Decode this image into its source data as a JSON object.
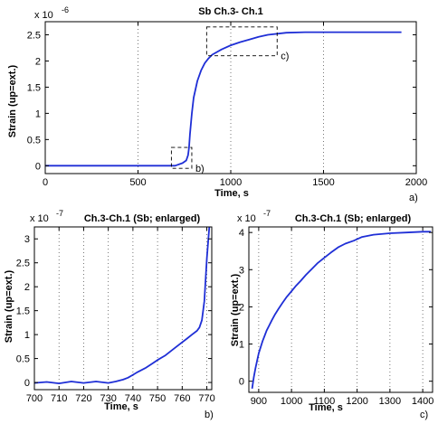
{
  "colors": {
    "series": "#1f2fd6",
    "grid": "#555555",
    "axis": "#000000"
  },
  "chart_data": [
    {
      "type": "line",
      "title": "Sb  Ch.3- Ch.1",
      "xlabel": "Time, s",
      "ylabel": "Strain (up=ext.)",
      "exponent_label": "x 10",
      "exponent_value": "-6",
      "panel_label": "a)",
      "xlim": [
        0,
        2000
      ],
      "ylim": [
        -0.15,
        2.75
      ],
      "xticks": [
        0,
        500,
        1000,
        1500,
        2000
      ],
      "yticks": [
        0,
        0.5,
        1,
        1.5,
        2,
        2.5
      ],
      "xtick_labels": [
        "0",
        "500",
        "1000",
        "1500",
        "2000"
      ],
      "ytick_labels": [
        "0",
        "0.5",
        "1",
        "1.5",
        "2",
        "2.5"
      ],
      "grid": "vertical dotted",
      "scale": "1e-6",
      "x": [
        0,
        200,
        400,
        600,
        700,
        740,
        760,
        770,
        775,
        780,
        790,
        800,
        820,
        840,
        860,
        880,
        900,
        950,
        1000,
        1050,
        1100,
        1150,
        1200,
        1300,
        1400,
        1500,
        1600,
        1700,
        1800,
        1920
      ],
      "y": [
        0.0,
        0.0,
        0.0,
        0.0,
        0.0,
        0.05,
        0.1,
        0.2,
        0.35,
        0.6,
        1.0,
        1.3,
        1.62,
        1.82,
        1.96,
        2.05,
        2.12,
        2.22,
        2.3,
        2.36,
        2.41,
        2.46,
        2.5,
        2.54,
        2.55,
        2.55,
        2.55,
        2.55,
        2.55,
        2.55
      ],
      "annotations": [
        {
          "label": "b)",
          "x_range": [
            680,
            790
          ],
          "y_range": [
            -0.05,
            0.35
          ]
        },
        {
          "label": "c)",
          "x_range": [
            870,
            1250
          ],
          "y_range": [
            2.1,
            2.65
          ]
        }
      ]
    },
    {
      "type": "line",
      "title": "Ch.3-Ch.1 (Sb; enlarged)",
      "xlabel": "Time,  s",
      "ylabel": "Strain (up=ext.)",
      "exponent_label": "x 10",
      "exponent_value": "-7",
      "panel_label": "b)",
      "xlim": [
        700,
        772
      ],
      "ylim": [
        -0.15,
        3.25
      ],
      "xticks": [
        700,
        710,
        720,
        730,
        740,
        750,
        760,
        770
      ],
      "yticks": [
        0,
        0.5,
        1,
        1.5,
        2,
        2.5,
        3
      ],
      "xtick_labels": [
        "700",
        "710",
        "720",
        "730",
        "740",
        "750",
        "760",
        "770"
      ],
      "ytick_labels": [
        "0",
        "0.5",
        "1",
        "1.5",
        "2",
        "2.5",
        "3"
      ],
      "grid": "vertical dotted",
      "scale": "1e-7",
      "x": [
        700,
        705,
        710,
        715,
        720,
        725,
        730,
        733,
        736,
        738,
        740,
        742,
        745,
        748,
        750,
        753,
        756,
        759,
        762,
        764,
        766,
        767,
        768,
        769,
        770,
        771
      ],
      "y": [
        -0.01,
        0.01,
        -0.02,
        0.02,
        -0.01,
        0.02,
        -0.01,
        0.02,
        0.06,
        0.1,
        0.16,
        0.22,
        0.3,
        0.4,
        0.47,
        0.56,
        0.68,
        0.8,
        0.92,
        1.0,
        1.08,
        1.15,
        1.3,
        1.7,
        2.6,
        3.25
      ]
    },
    {
      "type": "line",
      "title": "Ch.3-Ch.1 (Sb; enlarged)",
      "xlabel": "Time,  s",
      "ylabel": "Strain (up=ext.)",
      "exponent_label": "x 10",
      "exponent_value": "-7",
      "panel_label": "c)",
      "xlim": [
        870,
        1430
      ],
      "ylim": [
        -0.3,
        4.15
      ],
      "xticks": [
        900,
        1000,
        1100,
        1200,
        1300,
        1400
      ],
      "yticks": [
        0,
        1,
        2,
        3,
        4
      ],
      "xtick_labels": [
        "900",
        "1000",
        "1100",
        "1200",
        "1300",
        "1400"
      ],
      "ytick_labels": [
        "0",
        "1",
        "2",
        "3",
        "4"
      ],
      "grid": "vertical dotted",
      "scale": "1e-7",
      "x": [
        880,
        885,
        890,
        895,
        900,
        906,
        912,
        918,
        924,
        932,
        940,
        950,
        960,
        972,
        984,
        998,
        1012,
        1028,
        1044,
        1062,
        1080,
        1100,
        1120,
        1142,
        1164,
        1190,
        1215,
        1250,
        1300,
        1350,
        1400,
        1425
      ],
      "y": [
        -0.2,
        0.1,
        0.35,
        0.55,
        0.75,
        0.92,
        1.08,
        1.22,
        1.36,
        1.5,
        1.64,
        1.8,
        1.94,
        2.1,
        2.25,
        2.4,
        2.55,
        2.7,
        2.86,
        3.02,
        3.18,
        3.32,
        3.46,
        3.6,
        3.7,
        3.78,
        3.88,
        3.94,
        3.98,
        4.0,
        4.02,
        4.02
      ]
    }
  ]
}
